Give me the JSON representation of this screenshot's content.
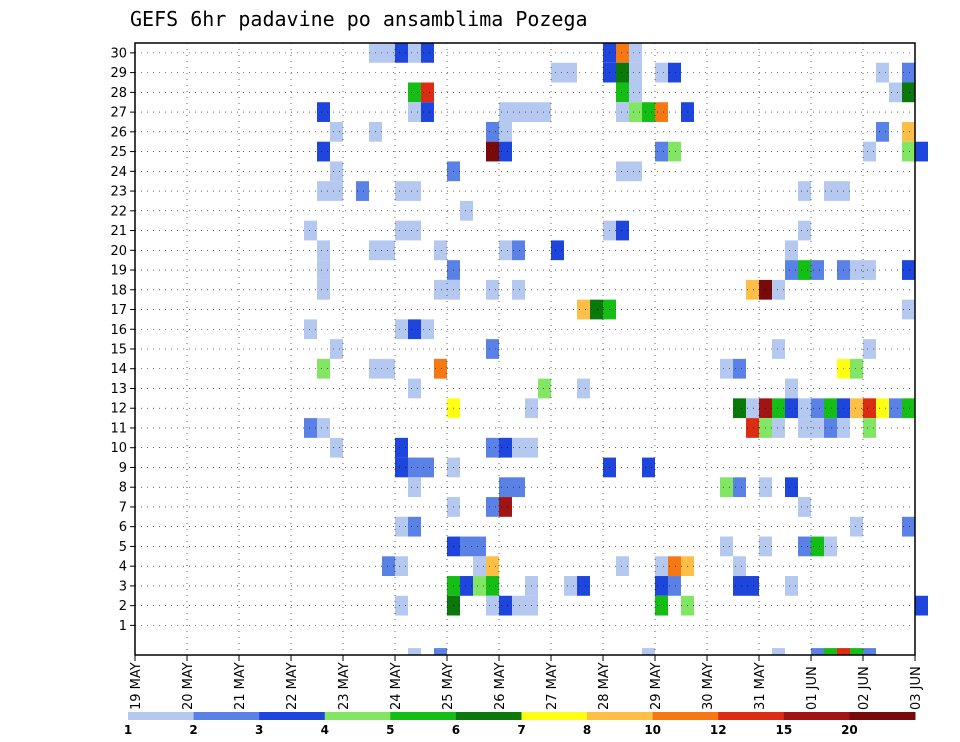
{
  "chart_data": {
    "type": "heatmap",
    "title": "GEFS 6hr padavine po ansamblima Pozega",
    "xlabel": "",
    "ylabel": "",
    "x_tick_labels": [
      "19 MAY",
      "20 MAY",
      "21 MAY",
      "22 MAY",
      "23 MAY",
      "24 MAY",
      "25 MAY",
      "26 MAY",
      "27 MAY",
      "28 MAY",
      "29 MAY",
      "30 MAY",
      "31 MAY",
      "01 JUN",
      "02 JUN",
      "03 JUN"
    ],
    "y_tick_labels": [
      "1",
      "2",
      "3",
      "4",
      "5",
      "6",
      "7",
      "8",
      "9",
      "10",
      "11",
      "12",
      "13",
      "14",
      "15",
      "16",
      "17",
      "18",
      "19",
      "20",
      "21",
      "22",
      "23",
      "24",
      "25",
      "26",
      "27",
      "28",
      "29",
      "30"
    ],
    "grid": true,
    "levels": [
      "1",
      "2",
      "3",
      "4",
      "5",
      "6",
      "7",
      "8",
      "10",
      "12",
      "15",
      "20"
    ],
    "colors": [
      "#b4c8f0",
      "#5a82e6",
      "#1e46dc",
      "#82e664",
      "#14be14",
      "#0a780a",
      "#ffff14",
      "#ffbe46",
      "#f57814",
      "#dc2d14",
      "#a01414",
      "#780a0a"
    ],
    "cells": [
      {
        "member": 30,
        "day": 4.5,
        "cls": 0
      },
      {
        "member": 30,
        "day": 4.75,
        "cls": 0
      },
      {
        "member": 30,
        "day": 5.0,
        "cls": 2
      },
      {
        "member": 30,
        "day": 5.25,
        "cls": 0
      },
      {
        "member": 30,
        "day": 5.5,
        "cls": 2
      },
      {
        "member": 30,
        "day": 9.0,
        "cls": 2
      },
      {
        "member": 30,
        "day": 9.25,
        "cls": 8
      },
      {
        "member": 30,
        "day": 9.5,
        "cls": 0
      },
      {
        "member": 29,
        "day": 8.0,
        "cls": 0
      },
      {
        "member": 29,
        "day": 8.25,
        "cls": 0
      },
      {
        "member": 29,
        "day": 9.0,
        "cls": 2
      },
      {
        "member": 29,
        "day": 9.25,
        "cls": 5
      },
      {
        "member": 29,
        "day": 9.5,
        "cls": 0
      },
      {
        "member": 29,
        "day": 10.0,
        "cls": 0
      },
      {
        "member": 29,
        "day": 10.25,
        "cls": 2
      },
      {
        "member": 29,
        "day": 14.25,
        "cls": 0
      },
      {
        "member": 29,
        "day": 14.75,
        "cls": 1
      },
      {
        "member": 28,
        "day": 5.25,
        "cls": 4
      },
      {
        "member": 28,
        "day": 5.5,
        "cls": 9
      },
      {
        "member": 28,
        "day": 9.25,
        "cls": 4
      },
      {
        "member": 28,
        "day": 9.5,
        "cls": 0
      },
      {
        "member": 28,
        "day": 14.5,
        "cls": 0
      },
      {
        "member": 28,
        "day": 14.75,
        "cls": 5
      },
      {
        "member": 27,
        "day": 3.5,
        "cls": 2
      },
      {
        "member": 27,
        "day": 5.25,
        "cls": 0
      },
      {
        "member": 27,
        "day": 5.5,
        "cls": 2
      },
      {
        "member": 27,
        "day": 7.0,
        "cls": 0
      },
      {
        "member": 27,
        "day": 7.25,
        "cls": 0
      },
      {
        "member": 27,
        "day": 7.5,
        "cls": 0
      },
      {
        "member": 27,
        "day": 7.75,
        "cls": 0
      },
      {
        "member": 27,
        "day": 9.25,
        "cls": 0
      },
      {
        "member": 27,
        "day": 9.5,
        "cls": 3
      },
      {
        "member": 27,
        "day": 9.75,
        "cls": 4
      },
      {
        "member": 27,
        "day": 10.0,
        "cls": 8
      },
      {
        "member": 27,
        "day": 10.5,
        "cls": 2
      },
      {
        "member": 26,
        "day": 3.75,
        "cls": 0
      },
      {
        "member": 26,
        "day": 4.5,
        "cls": 0
      },
      {
        "member": 26,
        "day": 6.75,
        "cls": 1
      },
      {
        "member": 26,
        "day": 7.0,
        "cls": 0
      },
      {
        "member": 26,
        "day": 14.25,
        "cls": 1
      },
      {
        "member": 26,
        "day": 14.75,
        "cls": 7
      },
      {
        "member": 25,
        "day": 3.5,
        "cls": 2
      },
      {
        "member": 25,
        "day": 6.75,
        "cls": 11
      },
      {
        "member": 25,
        "day": 7.0,
        "cls": 2
      },
      {
        "member": 25,
        "day": 10.0,
        "cls": 1
      },
      {
        "member": 25,
        "day": 10.25,
        "cls": 3
      },
      {
        "member": 25,
        "day": 14.0,
        "cls": 0
      },
      {
        "member": 25,
        "day": 14.75,
        "cls": 3
      },
      {
        "member": 25,
        "day": 15.0,
        "cls": 2
      },
      {
        "member": 24,
        "day": 3.75,
        "cls": 0
      },
      {
        "member": 24,
        "day": 6.0,
        "cls": 1
      },
      {
        "member": 24,
        "day": 9.25,
        "cls": 0
      },
      {
        "member": 24,
        "day": 9.5,
        "cls": 0
      },
      {
        "member": 23,
        "day": 3.5,
        "cls": 0
      },
      {
        "member": 23,
        "day": 3.75,
        "cls": 0
      },
      {
        "member": 23,
        "day": 4.25,
        "cls": 1
      },
      {
        "member": 23,
        "day": 5.0,
        "cls": 0
      },
      {
        "member": 23,
        "day": 5.25,
        "cls": 0
      },
      {
        "member": 23,
        "day": 12.75,
        "cls": 0
      },
      {
        "member": 23,
        "day": 13.25,
        "cls": 0
      },
      {
        "member": 23,
        "day": 13.5,
        "cls": 0
      },
      {
        "member": 22,
        "day": 6.25,
        "cls": 0
      },
      {
        "member": 21,
        "day": 3.25,
        "cls": 0
      },
      {
        "member": 21,
        "day": 5.0,
        "cls": 0
      },
      {
        "member": 21,
        "day": 5.25,
        "cls": 0
      },
      {
        "member": 21,
        "day": 9.0,
        "cls": 0
      },
      {
        "member": 21,
        "day": 9.25,
        "cls": 2
      },
      {
        "member": 21,
        "day": 12.75,
        "cls": 0
      },
      {
        "member": 20,
        "day": 3.5,
        "cls": 0
      },
      {
        "member": 20,
        "day": 4.5,
        "cls": 0
      },
      {
        "member": 20,
        "day": 4.75,
        "cls": 0
      },
      {
        "member": 20,
        "day": 5.75,
        "cls": 0
      },
      {
        "member": 20,
        "day": 7.0,
        "cls": 0
      },
      {
        "member": 20,
        "day": 7.25,
        "cls": 1
      },
      {
        "member": 20,
        "day": 8.0,
        "cls": 2
      },
      {
        "member": 20,
        "day": 12.5,
        "cls": 0
      },
      {
        "member": 19,
        "day": 3.5,
        "cls": 0
      },
      {
        "member": 19,
        "day": 6.0,
        "cls": 1
      },
      {
        "member": 19,
        "day": 12.5,
        "cls": 1
      },
      {
        "member": 19,
        "day": 12.75,
        "cls": 4
      },
      {
        "member": 19,
        "day": 13.0,
        "cls": 1
      },
      {
        "member": 19,
        "day": 13.5,
        "cls": 1
      },
      {
        "member": 19,
        "day": 13.75,
        "cls": 0
      },
      {
        "member": 19,
        "day": 14.0,
        "cls": 0
      },
      {
        "member": 19,
        "day": 14.75,
        "cls": 2
      },
      {
        "member": 18,
        "day": 3.5,
        "cls": 0
      },
      {
        "member": 18,
        "day": 5.75,
        "cls": 0
      },
      {
        "member": 18,
        "day": 6.0,
        "cls": 0
      },
      {
        "member": 18,
        "day": 6.75,
        "cls": 0
      },
      {
        "member": 18,
        "day": 7.25,
        "cls": 0
      },
      {
        "member": 18,
        "day": 11.75,
        "cls": 7
      },
      {
        "member": 18,
        "day": 12.0,
        "cls": 11
      },
      {
        "member": 18,
        "day": 12.25,
        "cls": 0
      },
      {
        "member": 17,
        "day": 8.5,
        "cls": 7
      },
      {
        "member": 17,
        "day": 8.75,
        "cls": 5
      },
      {
        "member": 17,
        "day": 9.0,
        "cls": 4
      },
      {
        "member": 17,
        "day": 14.75,
        "cls": 0
      },
      {
        "member": 16,
        "day": 3.25,
        "cls": 0
      },
      {
        "member": 16,
        "day": 5.0,
        "cls": 0
      },
      {
        "member": 16,
        "day": 5.25,
        "cls": 2
      },
      {
        "member": 16,
        "day": 5.5,
        "cls": 0
      },
      {
        "member": 15,
        "day": 3.75,
        "cls": 0
      },
      {
        "member": 15,
        "day": 6.75,
        "cls": 1
      },
      {
        "member": 15,
        "day": 12.25,
        "cls": 0
      },
      {
        "member": 15,
        "day": 14.0,
        "cls": 0
      },
      {
        "member": 14,
        "day": 3.5,
        "cls": 3
      },
      {
        "member": 14,
        "day": 4.5,
        "cls": 0
      },
      {
        "member": 14,
        "day": 4.75,
        "cls": 0
      },
      {
        "member": 14,
        "day": 5.75,
        "cls": 8
      },
      {
        "member": 14,
        "day": 11.25,
        "cls": 0
      },
      {
        "member": 14,
        "day": 11.5,
        "cls": 1
      },
      {
        "member": 14,
        "day": 13.5,
        "cls": 6
      },
      {
        "member": 14,
        "day": 13.75,
        "cls": 3
      },
      {
        "member": 13,
        "day": 5.25,
        "cls": 0
      },
      {
        "member": 13,
        "day": 7.75,
        "cls": 3
      },
      {
        "member": 13,
        "day": 8.5,
        "cls": 0
      },
      {
        "member": 13,
        "day": 12.5,
        "cls": 0
      },
      {
        "member": 12,
        "day": 6.0,
        "cls": 6
      },
      {
        "member": 12,
        "day": 7.5,
        "cls": 0
      },
      {
        "member": 12,
        "day": 11.5,
        "cls": 5
      },
      {
        "member": 12,
        "day": 11.75,
        "cls": 0
      },
      {
        "member": 12,
        "day": 12.0,
        "cls": 10
      },
      {
        "member": 12,
        "day": 12.25,
        "cls": 4
      },
      {
        "member": 12,
        "day": 12.5,
        "cls": 2
      },
      {
        "member": 12,
        "day": 12.75,
        "cls": 0
      },
      {
        "member": 12,
        "day": 13.0,
        "cls": 1
      },
      {
        "member": 12,
        "day": 13.25,
        "cls": 4
      },
      {
        "member": 12,
        "day": 13.5,
        "cls": 2
      },
      {
        "member": 12,
        "day": 13.75,
        "cls": 7
      },
      {
        "member": 12,
        "day": 14.0,
        "cls": 9
      },
      {
        "member": 12,
        "day": 14.25,
        "cls": 6
      },
      {
        "member": 12,
        "day": 14.5,
        "cls": 1
      },
      {
        "member": 12,
        "day": 14.75,
        "cls": 4
      },
      {
        "member": 11,
        "day": 3.25,
        "cls": 1
      },
      {
        "member": 11,
        "day": 3.5,
        "cls": 0
      },
      {
        "member": 11,
        "day": 11.75,
        "cls": 9
      },
      {
        "member": 11,
        "day": 12.0,
        "cls": 3
      },
      {
        "member": 11,
        "day": 12.25,
        "cls": 0
      },
      {
        "member": 11,
        "day": 12.75,
        "cls": 0
      },
      {
        "member": 11,
        "day": 13.0,
        "cls": 0
      },
      {
        "member": 11,
        "day": 13.25,
        "cls": 1
      },
      {
        "member": 11,
        "day": 13.5,
        "cls": 0
      },
      {
        "member": 11,
        "day": 14.0,
        "cls": 3
      },
      {
        "member": 10,
        "day": 3.75,
        "cls": 0
      },
      {
        "member": 10,
        "day": 5.0,
        "cls": 2
      },
      {
        "member": 10,
        "day": 6.75,
        "cls": 1
      },
      {
        "member": 10,
        "day": 7.0,
        "cls": 2
      },
      {
        "member": 10,
        "day": 7.25,
        "cls": 0
      },
      {
        "member": 10,
        "day": 7.5,
        "cls": 0
      },
      {
        "member": 9,
        "day": 5.0,
        "cls": 2
      },
      {
        "member": 9,
        "day": 5.25,
        "cls": 1
      },
      {
        "member": 9,
        "day": 5.5,
        "cls": 1
      },
      {
        "member": 9,
        "day": 6.0,
        "cls": 0
      },
      {
        "member": 9,
        "day": 9.0,
        "cls": 2
      },
      {
        "member": 9,
        "day": 9.75,
        "cls": 2
      },
      {
        "member": 8,
        "day": 5.25,
        "cls": 0
      },
      {
        "member": 8,
        "day": 7.0,
        "cls": 1
      },
      {
        "member": 8,
        "day": 7.25,
        "cls": 1
      },
      {
        "member": 8,
        "day": 11.25,
        "cls": 3
      },
      {
        "member": 8,
        "day": 11.5,
        "cls": 1
      },
      {
        "member": 8,
        "day": 12.0,
        "cls": 0
      },
      {
        "member": 8,
        "day": 12.5,
        "cls": 2
      },
      {
        "member": 7,
        "day": 6.0,
        "cls": 0
      },
      {
        "member": 7,
        "day": 6.75,
        "cls": 1
      },
      {
        "member": 7,
        "day": 7.0,
        "cls": 10
      },
      {
        "member": 7,
        "day": 12.75,
        "cls": 0
      },
      {
        "member": 6,
        "day": 5.0,
        "cls": 0
      },
      {
        "member": 6,
        "day": 5.25,
        "cls": 1
      },
      {
        "member": 6,
        "day": 13.75,
        "cls": 0
      },
      {
        "member": 6,
        "day": 14.75,
        "cls": 1
      },
      {
        "member": 5,
        "day": 6.0,
        "cls": 2
      },
      {
        "member": 5,
        "day": 6.25,
        "cls": 1
      },
      {
        "member": 5,
        "day": 6.5,
        "cls": 1
      },
      {
        "member": 5,
        "day": 11.25,
        "cls": 0
      },
      {
        "member": 5,
        "day": 12.0,
        "cls": 0
      },
      {
        "member": 5,
        "day": 12.75,
        "cls": 1
      },
      {
        "member": 5,
        "day": 13.0,
        "cls": 4
      },
      {
        "member": 5,
        "day": 13.25,
        "cls": 0
      },
      {
        "member": 4,
        "day": 4.75,
        "cls": 1
      },
      {
        "member": 4,
        "day": 5.0,
        "cls": 0
      },
      {
        "member": 4,
        "day": 6.5,
        "cls": 0
      },
      {
        "member": 4,
        "day": 6.75,
        "cls": 7
      },
      {
        "member": 4,
        "day": 9.25,
        "cls": 0
      },
      {
        "member": 4,
        "day": 10.0,
        "cls": 0
      },
      {
        "member": 4,
        "day": 10.25,
        "cls": 8
      },
      {
        "member": 4,
        "day": 10.5,
        "cls": 7
      },
      {
        "member": 4,
        "day": 11.5,
        "cls": 0
      },
      {
        "member": 3,
        "day": 6.0,
        "cls": 4
      },
      {
        "member": 3,
        "day": 6.25,
        "cls": 2
      },
      {
        "member": 3,
        "day": 6.5,
        "cls": 3
      },
      {
        "member": 3,
        "day": 6.75,
        "cls": 4
      },
      {
        "member": 3,
        "day": 7.5,
        "cls": 0
      },
      {
        "member": 3,
        "day": 8.25,
        "cls": 0
      },
      {
        "member": 3,
        "day": 8.5,
        "cls": 2
      },
      {
        "member": 3,
        "day": 10.0,
        "cls": 2
      },
      {
        "member": 3,
        "day": 10.25,
        "cls": 1
      },
      {
        "member": 3,
        "day": 11.5,
        "cls": 2
      },
      {
        "member": 3,
        "day": 11.75,
        "cls": 2
      },
      {
        "member": 3,
        "day": 12.5,
        "cls": 0
      },
      {
        "member": 2,
        "day": 5.0,
        "cls": 0
      },
      {
        "member": 2,
        "day": 6.0,
        "cls": 5
      },
      {
        "member": 2,
        "day": 6.75,
        "cls": 0
      },
      {
        "member": 2,
        "day": 7.0,
        "cls": 2
      },
      {
        "member": 2,
        "day": 7.25,
        "cls": 0
      },
      {
        "member": 2,
        "day": 7.5,
        "cls": 0
      },
      {
        "member": 2,
        "day": 10.0,
        "cls": 4
      },
      {
        "member": 2,
        "day": 10.5,
        "cls": 3
      },
      {
        "member": 2,
        "day": 15.0,
        "cls": 2
      }
    ],
    "bottom_row_cells": [
      {
        "day": 5.25,
        "cls": 0
      },
      {
        "day": 5.75,
        "cls": 1
      },
      {
        "day": 9.75,
        "cls": 0
      },
      {
        "day": 12.25,
        "cls": 0
      },
      {
        "day": 13.0,
        "cls": 1
      },
      {
        "day": 13.25,
        "cls": 4
      },
      {
        "day": 13.5,
        "cls": 9
      },
      {
        "day": 13.75,
        "cls": 4
      },
      {
        "day": 14.0,
        "cls": 1
      }
    ]
  }
}
